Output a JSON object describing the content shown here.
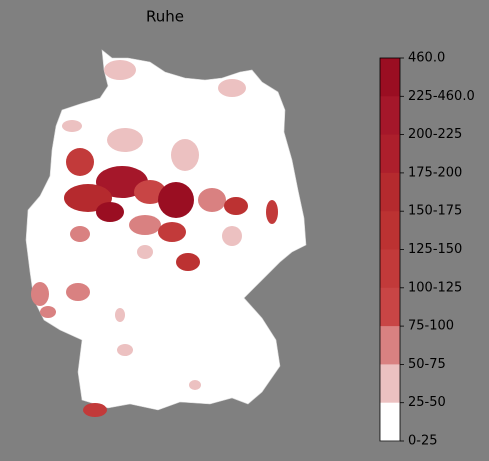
{
  "title": "Ruhe",
  "colorbar": {
    "labels": [
      "460.0",
      "225-460.0",
      "200-225",
      "175-200",
      "150-175",
      "125-150",
      "100-125",
      "75-100",
      "50-75",
      "25-50",
      "0-25"
    ],
    "colors": [
      "#9a0e22",
      "#a5172a",
      "#ad1f2c",
      "#b52a2e",
      "#bc3232",
      "#c23a3a",
      "#c84545",
      "#d98181",
      "#ecc1c1",
      "#ffffff"
    ]
  }
}
